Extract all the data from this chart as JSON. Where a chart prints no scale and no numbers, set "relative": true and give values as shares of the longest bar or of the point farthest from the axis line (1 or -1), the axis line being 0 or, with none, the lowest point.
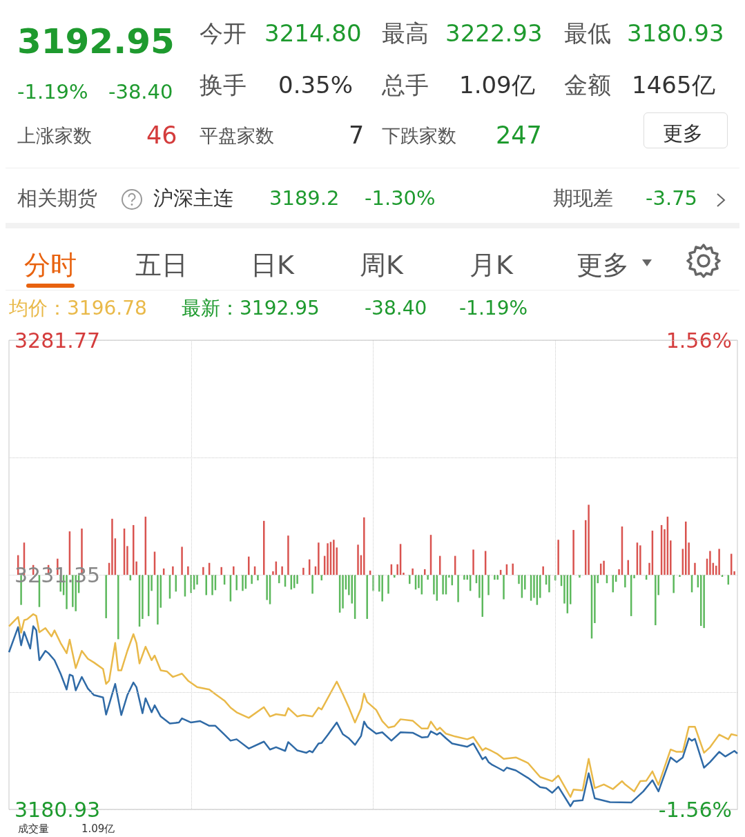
{
  "chart_data": [
    {
      "type": "other",
      "annotations": [
        "3192.95",
        "-1.19%",
        "-38.40",
        "今开",
        "3214.80",
        "最高",
        "3222.93",
        "最低",
        "3180.93",
        "换手",
        "0.35%",
        "总手",
        "1.09亿",
        "金额",
        "1465亿",
        "上涨家数",
        "46",
        "平盘家数",
        "7",
        "下跌家数",
        "247",
        "更多",
        "相关期货",
        "沪深主连",
        "3189.2",
        "-1.30%",
        "期现差",
        "-3.75",
        "分时",
        "五日",
        "日K",
        "周K",
        "月K",
        "更多"
      ]
    },
    {
      "type": "line",
      "annotations": [
        "均价：3196.78",
        "最新：3192.95",
        "-38.40",
        "-1.19%",
        "成交量",
        "1.09亿"
      ],
      "categories": [
        null,
        null,
        null,
        null,
        null,
        null,
        null,
        null,
        null,
        null,
        null,
        null,
        null,
        null,
        null,
        null,
        null,
        null,
        null,
        null,
        null,
        null,
        null,
        null,
        null,
        null,
        null,
        null,
        null,
        null,
        null,
        null,
        null,
        null,
        null,
        null,
        null,
        null,
        null,
        null,
        null,
        null,
        null,
        null,
        null,
        null,
        null,
        null,
        null,
        null,
        null,
        null,
        null,
        null,
        null,
        null,
        null,
        null,
        null,
        null,
        null,
        null,
        null,
        null,
        null,
        null,
        null,
        null,
        null,
        null,
        null,
        null,
        null,
        null,
        null,
        null,
        null,
        null,
        null,
        null,
        null,
        null,
        null,
        null,
        null,
        null,
        null,
        null,
        null,
        null,
        null,
        null,
        null,
        null,
        null,
        null,
        null,
        null,
        null,
        null,
        null,
        null,
        null,
        null,
        null,
        null,
        null,
        null,
        null,
        null,
        null,
        null,
        null,
        null,
        null,
        null,
        null,
        null,
        null,
        null,
        null,
        null,
        null,
        null,
        null,
        null,
        null,
        null,
        null,
        null,
        null,
        null,
        null,
        null,
        null,
        null,
        null,
        null,
        null,
        null,
        null,
        null,
        null,
        null,
        null,
        null,
        null,
        null,
        null,
        null,
        null,
        null,
        null,
        null,
        null,
        null,
        null,
        null,
        null,
        null,
        null,
        null,
        null,
        null,
        null,
        null,
        null,
        null,
        null,
        null,
        null,
        null,
        null,
        null,
        null,
        null,
        null,
        null,
        null,
        null,
        null,
        null,
        null,
        null,
        null,
        null,
        null,
        null,
        null,
        null,
        null,
        null,
        null,
        null,
        null,
        null,
        null,
        null,
        null,
        null,
        null,
        null,
        null,
        null,
        null,
        null,
        null,
        null,
        null,
        null,
        null,
        null,
        null,
        null,
        null,
        null,
        null,
        null,
        null,
        null,
        null,
        null,
        null,
        null,
        null,
        null,
        null,
        null,
        null,
        null,
        null,
        null,
        null,
        null,
        null,
        null,
        null,
        null,
        null,
        null,
        null
      ],
      "ylim": [
        3180.93,
        3281.77
      ],
      "yticks": [
        3180.93,
        {
          "value": 3206.14,
          "label": null
        },
        3231.35,
        {
          "value": 3256.56,
          "label": null
        },
        3281.77
      ],
      "y2lim": [
        -1.56,
        1.56
      ],
      "y2ticks": [
        {
          "value": -1.56,
          "label": "-1.56%"
        },
        {
          "value": 1.56,
          "label": "1.56%"
        }
      ],
      "tick_labels": "y",
      "grid": true,
      "series": [
        {
          "color": "#2f6aa6",
          "values": [
            3214.7,
            null,
            null,
            3220.1,
            3216.2,
            3219.1,
            null,
            3215.5,
            3220.3,
            3219.4,
            3213.0,
            null,
            3215.0,
            3214.5,
            null,
            3213.0,
            null,
            3210.1,
            null,
            3206.7,
            3209.9,
            3209.6,
            3206.5,
            null,
            3209.4,
            null,
            3206.9,
            null,
            3205.5,
            null,
            null,
            3205.0,
            3201.3,
            null,
            null,
            3207.9,
            null,
            3201.2,
            null,
            3205.5,
            null,
            3208.2,
            3207.2,
            null,
            3201.6,
            3204.8,
            null,
            3201.8,
            3203.3,
            null,
            3200.9,
            null,
            null,
            3199.4,
            null,
            null,
            3199.6,
            3200.5,
            null,
            null,
            3199.6,
            null,
            null,
            3199.9,
            null,
            null,
            3198.9,
            null,
            3198.9,
            null,
            null,
            3197.0,
            null,
            3195.7,
            null,
            3196.0,
            null,
            null,
            null,
            3194.0,
            null,
            null,
            null,
            null,
            3195.5,
            null,
            3193.8,
            null,
            3194.3,
            null,
            null,
            3193.5,
            3195.4,
            null,
            null,
            3193.6,
            null,
            null,
            3193.1,
            3193.5,
            3193.2,
            null,
            3195.1,
            3195.2,
            null,
            3196.9,
            null,
            null,
            3199.6,
            null,
            3197.1,
            null,
            3196.2,
            null,
            3194.8,
            null,
            3196.7,
            3199.8,
            3198.7,
            null,
            null,
            3197.2,
            null,
            3197.5,
            null,
            null,
            3195.7,
            null,
            null,
            3197.5,
            null,
            null,
            null,
            3197.4,
            null,
            null,
            3196.4,
            null,
            3196.5,
            3197.7,
            null,
            3197.0,
            3197.4,
            null,
            3196.2,
            null,
            3195.1,
            null,
            null,
            null,
            null,
            3194.4,
            null,
            3195.1,
            null,
            null,
            3191.7,
            3192.2,
            3191.1,
            3190.6,
            null,
            3189.9,
            null,
            3189.2,
            3189.9,
            null,
            null,
            3189.3,
            null,
            null,
            null,
            3187.7,
            null,
            null,
            null,
            3185.7,
            null,
            3185.5,
            null,
            3184.5,
            null,
            3185.8,
            null,
            null,
            null,
            3181.6,
            3182.7,
            null,
            null,
            3182.9,
            null,
            3188.7,
            null,
            3183.3,
            null,
            null,
            null,
            null,
            3182.5,
            null,
            null,
            null,
            null,
            null,
            null,
            3182.4,
            null,
            null,
            null,
            3184.8,
            null,
            null,
            3187.2,
            null,
            3184.8,
            null,
            null,
            null,
            3192.1,
            null,
            3191.1,
            null,
            3192.1,
            null,
            3196.2,
            3195.7,
            3196.1,
            null,
            null,
            3189.9,
            null,
            3191.1,
            null,
            null,
            3193.3,
            null,
            3192.3,
            null,
            null,
            3193.5,
            3192.95
          ]
        },
        {
          "color": "#e9b949",
          "values": [
            3220.3,
            null,
            null,
            3222.3,
            3218.9,
            3221.6,
            3221.8,
            null,
            3222.9,
            3222.5,
            3219.0,
            null,
            3219.9,
            null,
            3218.1,
            3219.4,
            null,
            3216.7,
            null,
            3214.5,
            3217.4,
            null,
            3211.3,
            null,
            3215.0,
            null,
            3213.3,
            null,
            3212.5,
            null,
            null,
            3211.1,
            3207.9,
            3208.6,
            null,
            3216.7,
            3210.8,
            3210.8,
            null,
            3215.0,
            null,
            3218.6,
            3216.7,
            3212.3,
            null,
            3215.9,
            null,
            3213.0,
            3214.0,
            null,
            3210.8,
            null,
            3210.6,
            null,
            3209.4,
            null,
            null,
            3210.1,
            null,
            3208.6,
            null,
            null,
            3207.2,
            null,
            null,
            null,
            3206.7,
            null,
            3205.7,
            null,
            null,
            3204.3,
            null,
            3202.8,
            null,
            3201.8,
            null,
            null,
            null,
            3200.6,
            null,
            null,
            null,
            null,
            3202.9,
            null,
            3200.9,
            null,
            3201.4,
            null,
            null,
            3201.1,
            3202.7,
            null,
            null,
            3200.9,
            null,
            3201.2,
            null,
            null,
            3200.9,
            null,
            3202.8,
            3202.4,
            null,
            null,
            null,
            null,
            3208.4,
            null,
            3205.7,
            null,
            3202.8,
            null,
            3199.6,
            null,
            3202.6,
            3205.8,
            3204.0,
            null,
            null,
            3202.3,
            null,
            3199.9,
            null,
            3198.5,
            null,
            3198.8,
            null,
            3200.3,
            null,
            null,
            null,
            3200.0,
            null,
            null,
            3198.3,
            null,
            3198.3,
            3199.8,
            null,
            3198.0,
            3198.5,
            null,
            3197.2,
            null,
            null,
            3196.6,
            null,
            null,
            null,
            3196.0,
            null,
            3196.5,
            null,
            null,
            3193.6,
            3194.1,
            null,
            3193.5,
            null,
            3192.8,
            null,
            3191.8,
            null,
            null,
            null,
            3192.1,
            null,
            null,
            null,
            3190.9,
            null,
            null,
            null,
            3187.9,
            null,
            null,
            null,
            3187.0,
            null,
            3188.2,
            null,
            null,
            null,
            3183.6,
            3185.2,
            null,
            null,
            3185.0,
            null,
            3191.8,
            null,
            3185.5,
            null,
            null,
            3186.3,
            null,
            null,
            3185.3,
            null,
            null,
            3187.0,
            3186.3,
            null,
            null,
            3184.8,
            null,
            3187.0,
            null,
            3187.1,
            null,
            3189.1,
            null,
            3186.2,
            null,
            null,
            null,
            3193.8,
            null,
            3193.3,
            null,
            3193.3,
            null,
            3198.7,
            null,
            3198.7,
            null,
            null,
            3193.1,
            null,
            3194.3,
            null,
            null,
            3197.0,
            null,
            null,
            3196.0,
            3197.1,
            null,
            3196.78
          ]
        }
      ]
    },
    {
      "type": "bar",
      "relative": true,
      "stacked": true,
      "tick_labels": false,
      "categories": [
        null,
        null,
        null,
        null,
        null,
        null,
        null,
        null,
        null,
        null,
        null,
        null,
        null,
        null,
        null,
        null,
        null,
        null,
        null,
        null,
        null,
        null,
        null,
        null,
        null,
        null,
        null,
        null,
        null,
        null,
        null,
        null,
        null,
        null,
        null,
        null,
        null,
        null,
        null,
        null,
        null,
        null,
        null,
        null,
        null,
        null,
        null,
        null,
        null,
        null,
        null,
        null,
        null,
        null,
        null,
        null,
        null,
        null,
        null,
        null,
        null,
        null,
        null,
        null,
        null,
        null,
        null,
        null,
        null,
        null,
        null,
        null,
        null,
        null,
        null,
        null,
        null,
        null,
        null,
        null,
        null,
        null,
        null,
        null,
        null,
        null,
        null,
        null,
        null,
        null,
        null,
        null,
        null,
        null,
        null,
        null,
        null,
        null,
        null,
        null,
        null,
        null,
        null,
        null,
        null,
        null,
        null,
        null,
        null,
        null,
        null,
        null,
        null,
        null,
        null,
        null,
        null,
        null,
        null,
        null,
        null,
        null,
        null,
        null,
        null,
        null,
        null,
        null,
        null,
        null,
        null,
        null,
        null,
        null,
        null,
        null,
        null,
        null,
        null,
        null,
        null,
        null,
        null,
        null,
        null,
        null,
        null,
        null,
        null,
        null,
        null,
        null,
        null,
        null,
        null,
        null,
        null,
        null,
        null,
        null,
        null,
        null,
        null,
        null,
        null,
        null,
        null,
        null,
        null,
        null,
        null,
        null,
        null,
        null,
        null,
        null,
        null,
        null,
        null,
        null,
        null,
        null,
        null,
        null,
        null,
        null,
        null,
        null,
        null,
        null,
        null,
        null,
        null,
        null,
        null,
        null,
        null,
        null,
        null,
        null,
        null,
        null,
        null,
        null,
        null,
        null,
        null,
        null,
        null,
        null,
        null,
        null,
        null,
        null,
        null,
        null,
        null,
        null,
        null,
        null,
        null,
        null,
        null,
        null,
        null,
        null,
        null,
        null,
        null,
        null,
        null,
        null,
        null,
        null,
        null,
        null,
        null,
        null,
        null,
        null,
        null
      ],
      "series": [
        {
          "color": "#d9534f",
          "values": [
            0,
            0,
            0,
            0.28,
            0,
            0.46,
            0,
            0,
            0.14,
            0,
            0,
            0,
            0,
            0.14,
            0,
            0,
            0.23,
            0,
            0,
            0,
            0.62,
            0,
            0,
            0,
            0.66,
            0,
            0,
            0,
            0,
            0,
            0,
            0,
            0,
            0.17,
            0.8,
            0.52,
            0,
            0,
            0.66,
            0.41,
            0,
            0.71,
            0.19,
            0,
            0,
            0.83,
            0,
            0,
            0.33,
            0,
            0,
            0.09,
            0,
            0,
            0.12,
            0,
            0,
            0.4,
            0,
            0.12,
            0,
            0,
            0,
            0,
            0.11,
            0,
            0.17,
            0,
            0,
            0,
            0.11,
            0,
            0,
            0,
            0.12,
            0,
            0,
            0,
            0,
            0.26,
            0,
            0.12,
            0,
            0,
            0.77,
            0,
            0,
            0.05,
            0.19,
            0,
            0.12,
            0,
            0.56,
            0,
            0,
            0,
            0,
            0.1,
            0,
            0.22,
            0,
            0.12,
            0.46,
            0,
            0.27,
            0.45,
            0.47,
            0.5,
            0.39,
            0,
            0,
            0,
            0,
            0,
            0,
            0.43,
            0.28,
            0.82,
            0,
            0.06,
            0,
            0,
            0,
            0,
            0,
            0,
            0.15,
            0,
            0.15,
            0.44,
            0.03,
            0,
            0,
            0.09,
            0,
            0,
            0,
            0.08,
            0,
            0.57,
            0,
            0,
            0.27,
            0,
            0,
            0,
            0,
            0.27,
            0,
            0,
            0,
            0,
            0,
            0.36,
            0,
            0,
            0,
            0.34,
            0,
            0,
            0,
            0,
            0.07,
            0,
            0.15,
            0,
            0.16,
            0,
            0,
            0,
            0,
            0,
            0,
            0,
            0,
            0,
            0.12,
            0,
            0,
            0,
            0,
            0.5,
            0,
            0,
            0,
            0,
            0.64,
            0,
            0,
            0,
            0.78,
            1,
            0,
            0,
            0,
            0.16,
            0.2,
            0,
            0,
            0,
            0,
            0.08,
            0.69,
            0,
            0.21,
            0,
            0,
            0.46,
            0.42,
            0,
            0,
            0.17,
            0.63,
            0,
            0,
            0.71,
            0.65,
            0.83,
            0.49,
            0,
            0,
            0,
            0.37,
            0.76,
            0.46,
            0,
            0.17,
            0,
            0,
            0,
            0.23,
            0.34,
            0.17,
            0.13,
            0.37,
            0,
            0,
            0,
            0.3,
            0.05,
            0
          ]
        },
        {
          "color": "#5cb85c",
          "values": [
            0,
            0,
            0,
            0,
            -0.43,
            0,
            0,
            0,
            0,
            0,
            -0.46,
            0,
            0,
            0,
            0,
            0,
            0,
            -0.24,
            -0.29,
            -0.49,
            0,
            -0.46,
            -0.52,
            -0.26,
            0,
            0,
            0,
            0,
            0,
            0,
            0,
            0,
            -0.62,
            0,
            0,
            0,
            -0.92,
            0,
            0,
            0,
            -0.08,
            0,
            0,
            -0.74,
            -0.63,
            0,
            -0.59,
            -0.23,
            0,
            -0.71,
            -0.47,
            0,
            0,
            -0.34,
            0,
            -0.24,
            0,
            0,
            -0.31,
            0,
            -0.26,
            -0.21,
            -0.14,
            0,
            0,
            -0.29,
            0,
            -0.29,
            -0.22,
            0,
            0,
            -0.14,
            0,
            -0.38,
            0,
            -0.22,
            0,
            -0.23,
            -0.2,
            0,
            -0.13,
            0,
            -0.08,
            0,
            0,
            -0.36,
            -0.42,
            0,
            0,
            -0.12,
            0,
            -0.17,
            0,
            -0.21,
            -0.19,
            -0.13,
            0,
            0,
            0,
            0,
            -0.27,
            0,
            0,
            -0.08,
            0,
            0,
            0,
            0,
            0,
            -0.54,
            -0.48,
            -0.21,
            -0.29,
            -0.41,
            -0.63,
            0,
            0,
            0,
            -0.63,
            0,
            -0.23,
            0,
            -0.24,
            -0.38,
            0,
            -0.27,
            0,
            -0.04,
            0,
            0,
            0,
            0,
            -0.13,
            0,
            -0.21,
            -0.19,
            -0.28,
            0,
            -0.07,
            0,
            -0.28,
            -0.37,
            0,
            -0.28,
            -0.28,
            -0.04,
            -0.15,
            0,
            -0.39,
            0,
            -0.07,
            -0.07,
            -0.23,
            0,
            -0.12,
            -0.33,
            -0.6,
            0,
            -0.29,
            0,
            -0.07,
            -0.07,
            0,
            -0.35,
            0,
            0,
            0,
            0,
            -0.13,
            -0.33,
            -0.21,
            0,
            -0.37,
            -0.33,
            -0.43,
            -0.33,
            0,
            -0.14,
            -0.25,
            0,
            -0.08,
            0,
            -0.16,
            -0.41,
            -0.55,
            -0.42,
            0,
            0,
            -0.04,
            0,
            0,
            0,
            -0.91,
            -0.69,
            -0.12,
            0,
            0,
            -0.12,
            0,
            -0.25,
            -0.1,
            0,
            0,
            -0.18,
            0,
            -0.59,
            -0.05,
            0,
            0,
            0,
            -0.07,
            0,
            0,
            -0.72,
            -0.29,
            0,
            0,
            0,
            0,
            -0.26,
            0,
            -0.03,
            0,
            0,
            0,
            -0.25,
            0,
            -0.18,
            -0.73,
            -0.76,
            0,
            0,
            0,
            0,
            0,
            -0.03,
            0,
            -0.14,
            0,
            0,
            0
          ]
        }
      ]
    }
  ]
}
